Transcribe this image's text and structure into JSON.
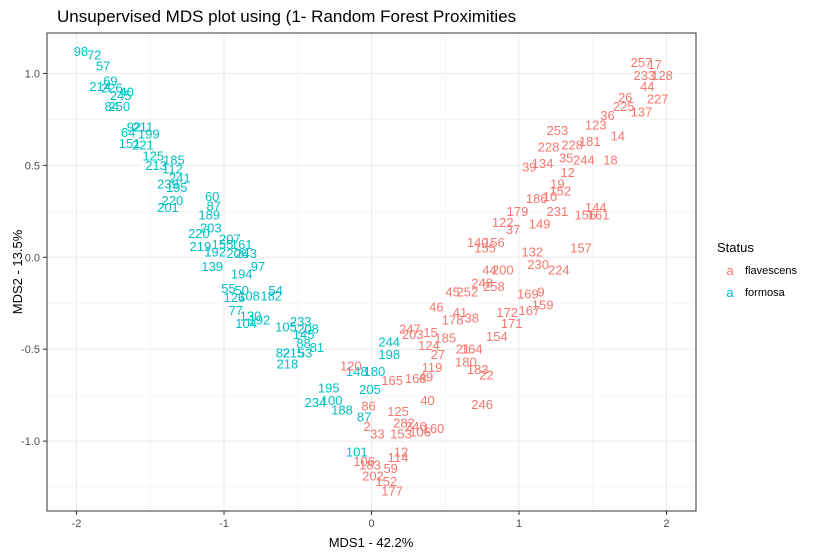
{
  "chart_data": {
    "type": "scatter",
    "title": "Unsupervised MDS plot using (1- Random Forest Proximities",
    "xlabel": "MDS1 - 42.2%",
    "ylabel": "MDS2 - 13.5%",
    "xlim": [
      -2.2,
      2.2
    ],
    "ylim": [
      -1.38,
      1.22
    ],
    "xticks": [
      -2,
      -1,
      0,
      1,
      2
    ],
    "xtick_labels": [
      "-2",
      "-1",
      "0",
      "1",
      "2"
    ],
    "yticks": [
      -1.0,
      -0.5,
      0.0,
      0.5,
      1.0
    ],
    "ytick_labels": [
      "-1.0",
      "-0.5",
      "0.0",
      "0.5",
      "1.0"
    ],
    "grid": true,
    "legend": {
      "title": "Status",
      "position": "right",
      "glyph": "a"
    },
    "colors": {
      "flavescens": "#F8766D",
      "formosa": "#00BFC4"
    },
    "series": [
      {
        "name": "formosa",
        "points": [
          {
            "label": "98",
            "x": -1.97,
            "y": 1.12
          },
          {
            "label": "72",
            "x": -1.88,
            "y": 1.1
          },
          {
            "label": "57",
            "x": -1.82,
            "y": 1.04
          },
          {
            "label": "69",
            "x": -1.77,
            "y": 0.96
          },
          {
            "label": "214",
            "x": -1.84,
            "y": 0.93
          },
          {
            "label": "226",
            "x": -1.76,
            "y": 0.92
          },
          {
            "label": "40",
            "x": -1.66,
            "y": 0.9
          },
          {
            "label": "245",
            "x": -1.7,
            "y": 0.88
          },
          {
            "label": "84",
            "x": -1.76,
            "y": 0.82
          },
          {
            "label": "250",
            "x": -1.71,
            "y": 0.82
          },
          {
            "label": "92",
            "x": -1.61,
            "y": 0.71
          },
          {
            "label": "211",
            "x": -1.55,
            "y": 0.71
          },
          {
            "label": "64",
            "x": -1.65,
            "y": 0.68
          },
          {
            "label": "199",
            "x": -1.51,
            "y": 0.67
          },
          {
            "label": "151",
            "x": -1.64,
            "y": 0.62
          },
          {
            "label": "221",
            "x": -1.55,
            "y": 0.61
          },
          {
            "label": "125",
            "x": -1.48,
            "y": 0.55
          },
          {
            "label": "185",
            "x": -1.34,
            "y": 0.53
          },
          {
            "label": "213",
            "x": -1.46,
            "y": 0.5
          },
          {
            "label": "112",
            "x": -1.35,
            "y": 0.48
          },
          {
            "label": "241",
            "x": -1.3,
            "y": 0.43
          },
          {
            "label": "239",
            "x": -1.38,
            "y": 0.4
          },
          {
            "label": "195",
            "x": -1.32,
            "y": 0.38
          },
          {
            "label": "220",
            "x": -1.35,
            "y": 0.31
          },
          {
            "label": "60",
            "x": -1.08,
            "y": 0.33
          },
          {
            "label": "87",
            "x": -1.07,
            "y": 0.28
          },
          {
            "label": "201",
            "x": -1.38,
            "y": 0.27
          },
          {
            "label": "189",
            "x": -1.1,
            "y": 0.23
          },
          {
            "label": "203",
            "x": -1.09,
            "y": 0.16
          },
          {
            "label": "220",
            "x": -1.17,
            "y": 0.13
          },
          {
            "label": "207",
            "x": -0.96,
            "y": 0.1
          },
          {
            "label": "219",
            "x": -1.16,
            "y": 0.06
          },
          {
            "label": "155",
            "x": -1.01,
            "y": 0.07
          },
          {
            "label": "161",
            "x": -0.88,
            "y": 0.07
          },
          {
            "label": "192",
            "x": -1.06,
            "y": 0.03
          },
          {
            "label": "206",
            "x": -0.91,
            "y": 0.02
          },
          {
            "label": "243",
            "x": -0.85,
            "y": 0.02
          },
          {
            "label": "139",
            "x": -1.08,
            "y": -0.05
          },
          {
            "label": "97",
            "x": -0.77,
            "y": -0.05
          },
          {
            "label": "194",
            "x": -0.88,
            "y": -0.09
          },
          {
            "label": "55",
            "x": -0.97,
            "y": -0.17
          },
          {
            "label": "50",
            "x": -0.88,
            "y": -0.18
          },
          {
            "label": "54",
            "x": -0.65,
            "y": -0.18
          },
          {
            "label": "126",
            "x": -0.93,
            "y": -0.22
          },
          {
            "label": "108",
            "x": -0.83,
            "y": -0.21
          },
          {
            "label": "182",
            "x": -0.68,
            "y": -0.21
          },
          {
            "label": "77",
            "x": -0.92,
            "y": -0.29
          },
          {
            "label": "130",
            "x": -0.82,
            "y": -0.32
          },
          {
            "label": "192",
            "x": -0.76,
            "y": -0.34
          },
          {
            "label": "104",
            "x": -0.85,
            "y": -0.36
          },
          {
            "label": "233",
            "x": -0.48,
            "y": -0.35
          },
          {
            "label": "105",
            "x": -0.58,
            "y": -0.38
          },
          {
            "label": "208",
            "x": -0.43,
            "y": -0.39
          },
          {
            "label": "145",
            "x": -0.46,
            "y": -0.42
          },
          {
            "label": "88",
            "x": -0.46,
            "y": -0.47
          },
          {
            "label": "81",
            "x": -0.37,
            "y": -0.49
          },
          {
            "label": "82",
            "x": -0.6,
            "y": -0.52
          },
          {
            "label": "215",
            "x": -0.53,
            "y": -0.52
          },
          {
            "label": "53",
            "x": -0.45,
            "y": -0.52
          },
          {
            "label": "218",
            "x": -0.57,
            "y": -0.58
          },
          {
            "label": "195",
            "x": -0.29,
            "y": -0.71
          },
          {
            "label": "100",
            "x": -0.27,
            "y": -0.78
          },
          {
            "label": "234",
            "x": -0.38,
            "y": -0.79
          },
          {
            "label": "188",
            "x": -0.2,
            "y": -0.83
          },
          {
            "label": "244",
            "x": 0.12,
            "y": -0.46
          },
          {
            "label": "198",
            "x": 0.12,
            "y": -0.53
          },
          {
            "label": "180",
            "x": 0.02,
            "y": -0.62
          },
          {
            "label": "148",
            "x": -0.1,
            "y": -0.62
          },
          {
            "label": "205",
            "x": -0.01,
            "y": -0.72
          },
          {
            "label": "87",
            "x": -0.05,
            "y": -0.87
          },
          {
            "label": "101",
            "x": -0.1,
            "y": -1.06
          }
        ]
      },
      {
        "name": "flavescens",
        "points": [
          {
            "label": "257",
            "x": 1.83,
            "y": 1.06
          },
          {
            "label": "17",
            "x": 1.92,
            "y": 1.05
          },
          {
            "label": "128",
            "x": 1.97,
            "y": 0.99
          },
          {
            "label": "233",
            "x": 1.85,
            "y": 0.99
          },
          {
            "label": "44",
            "x": 1.87,
            "y": 0.93
          },
          {
            "label": "26",
            "x": 1.72,
            "y": 0.87
          },
          {
            "label": "227",
            "x": 1.94,
            "y": 0.86
          },
          {
            "label": "225",
            "x": 1.71,
            "y": 0.82
          },
          {
            "label": "137",
            "x": 1.83,
            "y": 0.79
          },
          {
            "label": "36",
            "x": 1.6,
            "y": 0.77
          },
          {
            "label": "123",
            "x": 1.52,
            "y": 0.72
          },
          {
            "label": "253",
            "x": 1.26,
            "y": 0.69
          },
          {
            "label": "14",
            "x": 1.67,
            "y": 0.66
          },
          {
            "label": "181",
            "x": 1.48,
            "y": 0.63
          },
          {
            "label": "228",
            "x": 1.36,
            "y": 0.61
          },
          {
            "label": "228",
            "x": 1.2,
            "y": 0.6
          },
          {
            "label": "134",
            "x": 1.16,
            "y": 0.51
          },
          {
            "label": "39",
            "x": 1.07,
            "y": 0.49
          },
          {
            "label": "35",
            "x": 1.32,
            "y": 0.54
          },
          {
            "label": "244",
            "x": 1.44,
            "y": 0.53
          },
          {
            "label": "18",
            "x": 1.62,
            "y": 0.53
          },
          {
            "label": "12",
            "x": 1.33,
            "y": 0.46
          },
          {
            "label": "19",
            "x": 1.26,
            "y": 0.4
          },
          {
            "label": "152",
            "x": 1.28,
            "y": 0.36
          },
          {
            "label": "10",
            "x": 1.21,
            "y": 0.33
          },
          {
            "label": "186",
            "x": 1.12,
            "y": 0.32
          },
          {
            "label": "144",
            "x": 1.52,
            "y": 0.27
          },
          {
            "label": "179",
            "x": 0.99,
            "y": 0.25
          },
          {
            "label": "231",
            "x": 1.26,
            "y": 0.25
          },
          {
            "label": "156",
            "x": 1.45,
            "y": 0.23
          },
          {
            "label": "161",
            "x": 1.54,
            "y": 0.23
          },
          {
            "label": "149",
            "x": 1.14,
            "y": 0.18
          },
          {
            "label": "122",
            "x": 0.89,
            "y": 0.19
          },
          {
            "label": "37",
            "x": 0.96,
            "y": 0.15
          },
          {
            "label": "140",
            "x": 0.72,
            "y": 0.08
          },
          {
            "label": "156",
            "x": 0.83,
            "y": 0.08
          },
          {
            "label": "155",
            "x": 0.77,
            "y": 0.05
          },
          {
            "label": "157",
            "x": 1.42,
            "y": 0.05
          },
          {
            "label": "132",
            "x": 1.09,
            "y": 0.03
          },
          {
            "label": "230",
            "x": 1.13,
            "y": -0.04
          },
          {
            "label": "224",
            "x": 1.27,
            "y": -0.07
          },
          {
            "label": "44",
            "x": 0.8,
            "y": -0.07
          },
          {
            "label": "200",
            "x": 0.89,
            "y": -0.07
          },
          {
            "label": "248",
            "x": 0.75,
            "y": -0.14
          },
          {
            "label": "258",
            "x": 0.83,
            "y": -0.16
          },
          {
            "label": "45",
            "x": 0.55,
            "y": -0.19
          },
          {
            "label": "252",
            "x": 0.65,
            "y": -0.19
          },
          {
            "label": "169",
            "x": 1.06,
            "y": -0.2
          },
          {
            "label": "9",
            "x": 1.15,
            "y": -0.19
          },
          {
            "label": "46",
            "x": 0.44,
            "y": -0.27
          },
          {
            "label": "41",
            "x": 0.6,
            "y": -0.3
          },
          {
            "label": "172",
            "x": 0.92,
            "y": -0.3
          },
          {
            "label": "167",
            "x": 1.07,
            "y": -0.29
          },
          {
            "label": "159",
            "x": 1.16,
            "y": -0.26
          },
          {
            "label": "178",
            "x": 0.55,
            "y": -0.34
          },
          {
            "label": "38",
            "x": 0.68,
            "y": -0.33
          },
          {
            "label": "171",
            "x": 0.95,
            "y": -0.36
          },
          {
            "label": "154",
            "x": 0.85,
            "y": -0.43
          },
          {
            "label": "247",
            "x": 0.26,
            "y": -0.39
          },
          {
            "label": "15",
            "x": 0.4,
            "y": -0.41
          },
          {
            "label": "185",
            "x": 0.5,
            "y": -0.44
          },
          {
            "label": "203",
            "x": 0.28,
            "y": -0.42
          },
          {
            "label": "124",
            "x": 0.39,
            "y": -0.48
          },
          {
            "label": "164",
            "x": 0.68,
            "y": -0.5
          },
          {
            "label": "21",
            "x": 0.62,
            "y": -0.5
          },
          {
            "label": "27",
            "x": 0.45,
            "y": -0.53
          },
          {
            "label": "180",
            "x": 0.64,
            "y": -0.57
          },
          {
            "label": "183",
            "x": 0.72,
            "y": -0.61
          },
          {
            "label": "119",
            "x": 0.41,
            "y": -0.6
          },
          {
            "label": "22",
            "x": 0.78,
            "y": -0.64
          },
          {
            "label": "49",
            "x": 0.37,
            "y": -0.65
          },
          {
            "label": "165",
            "x": 0.14,
            "y": -0.67
          },
          {
            "label": "168",
            "x": 0.3,
            "y": -0.66
          },
          {
            "label": "120",
            "x": -0.14,
            "y": -0.59
          },
          {
            "label": "40",
            "x": 0.38,
            "y": -0.78
          },
          {
            "label": "246",
            "x": 0.75,
            "y": -0.8
          },
          {
            "label": "86",
            "x": -0.02,
            "y": -0.81
          },
          {
            "label": "125",
            "x": 0.18,
            "y": -0.84
          },
          {
            "label": "282",
            "x": 0.22,
            "y": -0.9
          },
          {
            "label": "2",
            "x": -0.03,
            "y": -0.92
          },
          {
            "label": "246",
            "x": 0.3,
            "y": -0.92
          },
          {
            "label": "160",
            "x": 0.42,
            "y": -0.93
          },
          {
            "label": "33",
            "x": 0.04,
            "y": -0.96
          },
          {
            "label": "153",
            "x": 0.2,
            "y": -0.96
          },
          {
            "label": "106",
            "x": 0.33,
            "y": -0.95
          },
          {
            "label": "12",
            "x": 0.2,
            "y": -1.06
          },
          {
            "label": "114",
            "x": 0.18,
            "y": -1.09
          },
          {
            "label": "106",
            "x": -0.05,
            "y": -1.11
          },
          {
            "label": "183",
            "x": -0.01,
            "y": -1.13
          },
          {
            "label": "59",
            "x": 0.13,
            "y": -1.15
          },
          {
            "label": "202",
            "x": 0.01,
            "y": -1.19
          },
          {
            "label": "152",
            "x": 0.1,
            "y": -1.22
          },
          {
            "label": "177",
            "x": 0.14,
            "y": -1.27
          }
        ]
      }
    ]
  }
}
